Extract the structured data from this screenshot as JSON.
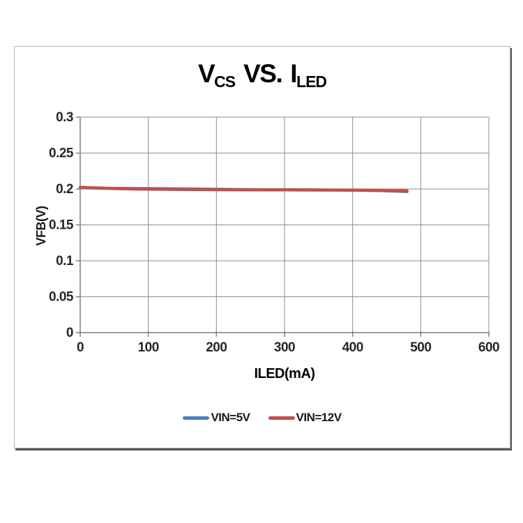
{
  "title": {
    "v": "V",
    "v_sub": "CS",
    "vs": "VS.",
    "i": "I",
    "i_sub": "LED"
  },
  "axes": {
    "x_label": "ILED(mA)",
    "y_label": "VFB(V)"
  },
  "chart_data": {
    "type": "line",
    "title": "VCS VS. ILED",
    "xlabel": "ILED(mA)",
    "ylabel": "VFB(V)",
    "xlim": [
      0,
      600
    ],
    "ylim": [
      0,
      0.3
    ],
    "xticks": [
      0,
      100,
      200,
      300,
      400,
      500,
      600
    ],
    "yticks": [
      0,
      0.05,
      0.1,
      0.15,
      0.2,
      0.25,
      0.3
    ],
    "grid": true,
    "legend_position": "bottom-center",
    "style": {
      "grid_color": "#8c8c8c",
      "axis_color": "#7f7f7f",
      "tick_label_color": "#262626"
    },
    "series": [
      {
        "name": "VIN=5V",
        "color": "#4e81bd",
        "stroke_width": 4,
        "points": [
          [
            0,
            0.2015
          ],
          [
            40,
            0.201
          ],
          [
            80,
            0.2008
          ],
          [
            120,
            0.2006
          ],
          [
            160,
            0.2002
          ],
          [
            200,
            0.1997
          ],
          [
            250,
            0.1993
          ],
          [
            300,
            0.1991
          ],
          [
            350,
            0.1988
          ],
          [
            400,
            0.1982
          ],
          [
            440,
            0.1976
          ],
          [
            480,
            0.1962
          ]
        ]
      },
      {
        "name": "VIN=12V",
        "color": "#c0504d",
        "stroke_width": 4.5,
        "points": [
          [
            0,
            0.2023
          ],
          [
            40,
            0.2008
          ],
          [
            80,
            0.2
          ],
          [
            120,
            0.1996
          ],
          [
            160,
            0.1993
          ],
          [
            200,
            0.199
          ],
          [
            250,
            0.1988
          ],
          [
            300,
            0.1988
          ],
          [
            350,
            0.1986
          ],
          [
            400,
            0.1984
          ],
          [
            440,
            0.198
          ],
          [
            480,
            0.1972
          ]
        ]
      }
    ]
  }
}
